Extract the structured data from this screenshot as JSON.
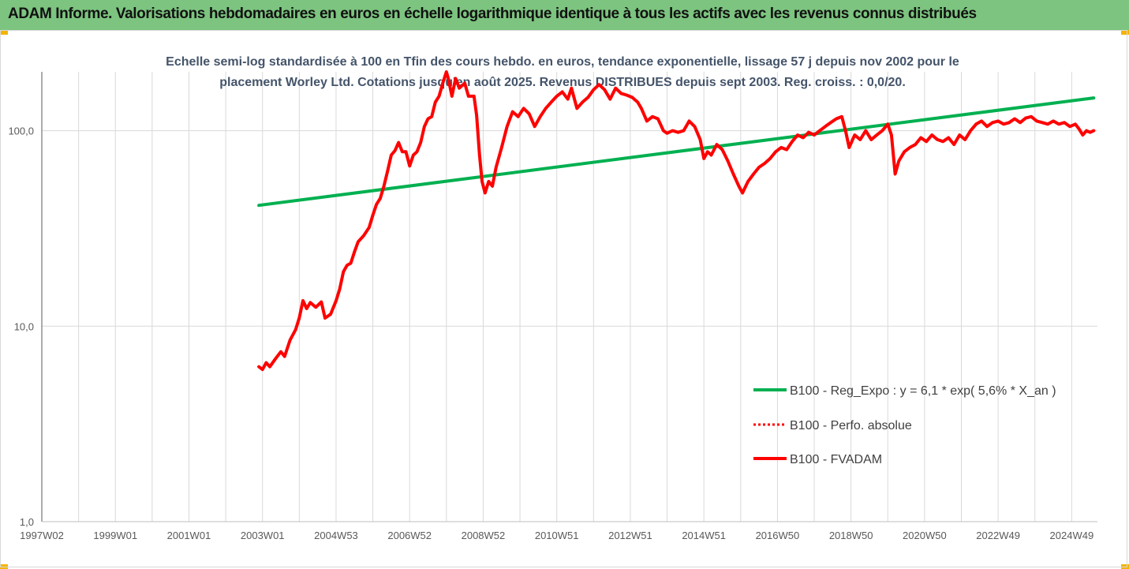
{
  "header": {
    "title": "ADAM Informe. Valorisations hebdomadaires en euros en échelle logarithmique identique à tous les actifs avec les revenus connus distribués"
  },
  "colors": {
    "header_bg": "#7cc47f",
    "regression": "#00b050",
    "performance": "#ff0000",
    "gridline": "#d9d9d9",
    "title_text": "#44546a"
  },
  "chart_data": {
    "type": "line",
    "title_lines": [
      "Echelle semi-log standardisée à 100 en Tfin des cours hebdo. en euros, tendance exponentielle, lissage 57 j depuis nov 2002 pour le",
      "placement Worley Ltd. Cotations jusqu'en août 2025. Revenus DISTRIBUES depuis sept 2003. Reg. croiss. : 0,0/20."
    ],
    "y_scale": "log",
    "ylim": [
      1,
      200
    ],
    "y_ticks": [
      {
        "value": 1,
        "label": "1,0"
      },
      {
        "value": 10,
        "label": "10,0"
      },
      {
        "value": 100,
        "label": "100,0"
      }
    ],
    "xlim": [
      1997.0,
      2025.7
    ],
    "x_ticks": [
      {
        "year": 1997.0,
        "label": "1997W02"
      },
      {
        "year": 1999.0,
        "label": "1999W01"
      },
      {
        "year": 2001.0,
        "label": "2001W01"
      },
      {
        "year": 2003.0,
        "label": "2003W01"
      },
      {
        "year": 2005.0,
        "label": "2004W53"
      },
      {
        "year": 2007.0,
        "label": "2006W52"
      },
      {
        "year": 2009.0,
        "label": "2008W52"
      },
      {
        "year": 2011.0,
        "label": "2010W51"
      },
      {
        "year": 2013.0,
        "label": "2012W51"
      },
      {
        "year": 2015.0,
        "label": "2014W51"
      },
      {
        "year": 2017.0,
        "label": "2016W50"
      },
      {
        "year": 2019.0,
        "label": "2018W50"
      },
      {
        "year": 2021.0,
        "label": "2020W50"
      },
      {
        "year": 2023.0,
        "label": "2022W49"
      },
      {
        "year": 2025.0,
        "label": "2024W49"
      }
    ],
    "grid": {
      "vertical": true,
      "horizontal": true
    },
    "legend_position": "right",
    "series": [
      {
        "name": "B100 - Reg_Expo : y = 6,1 * exp( 5,6% *  X_an )",
        "style": "solid",
        "color": "#00b050",
        "points": [
          [
            2002.9,
            41.5
          ],
          [
            2025.6,
            147
          ]
        ]
      },
      {
        "name": "B100 - Perfo. absolue",
        "style": "dotted",
        "color": "#ff0000",
        "points": []
      },
      {
        "name": "B100 - FVADAM",
        "style": "solid",
        "color": "#ff0000",
        "points": [
          [
            2002.9,
            6.2
          ],
          [
            2003.0,
            6.0
          ],
          [
            2003.1,
            6.5
          ],
          [
            2003.2,
            6.2
          ],
          [
            2003.35,
            6.8
          ],
          [
            2003.5,
            7.4
          ],
          [
            2003.6,
            7.0
          ],
          [
            2003.75,
            8.5
          ],
          [
            2003.9,
            9.6
          ],
          [
            2004.0,
            11.0
          ],
          [
            2004.1,
            13.5
          ],
          [
            2004.2,
            12.3
          ],
          [
            2004.3,
            13.2
          ],
          [
            2004.45,
            12.5
          ],
          [
            2004.6,
            13.3
          ],
          [
            2004.7,
            11.0
          ],
          [
            2004.85,
            11.5
          ],
          [
            2005.0,
            13.5
          ],
          [
            2005.1,
            15.5
          ],
          [
            2005.2,
            19.0
          ],
          [
            2005.3,
            20.5
          ],
          [
            2005.4,
            21.0
          ],
          [
            2005.5,
            24.0
          ],
          [
            2005.6,
            27.0
          ],
          [
            2005.75,
            29.0
          ],
          [
            2005.9,
            32.0
          ],
          [
            2006.0,
            37.0
          ],
          [
            2006.1,
            42.0
          ],
          [
            2006.2,
            45.0
          ],
          [
            2006.3,
            52.0
          ],
          [
            2006.4,
            62.0
          ],
          [
            2006.5,
            75.0
          ],
          [
            2006.6,
            79.0
          ],
          [
            2006.7,
            87.0
          ],
          [
            2006.8,
            78.0
          ],
          [
            2006.9,
            78.0
          ],
          [
            2007.0,
            66.0
          ],
          [
            2007.1,
            75.0
          ],
          [
            2007.2,
            78.0
          ],
          [
            2007.3,
            87.0
          ],
          [
            2007.4,
            105.0
          ],
          [
            2007.5,
            115.0
          ],
          [
            2007.6,
            118.0
          ],
          [
            2007.7,
            140.0
          ],
          [
            2007.8,
            150.0
          ],
          [
            2007.9,
            175.0
          ],
          [
            2008.0,
            200.0
          ],
          [
            2008.05,
            185.0
          ],
          [
            2008.15,
            150.0
          ],
          [
            2008.25,
            185.0
          ],
          [
            2008.35,
            165.0
          ],
          [
            2008.5,
            175.0
          ],
          [
            2008.6,
            150.0
          ],
          [
            2008.75,
            150.0
          ],
          [
            2008.82,
            120.0
          ],
          [
            2008.9,
            75.0
          ],
          [
            2008.97,
            55.0
          ],
          [
            2009.05,
            48.0
          ],
          [
            2009.15,
            55.0
          ],
          [
            2009.25,
            52.0
          ],
          [
            2009.35,
            65.0
          ],
          [
            2009.5,
            82.0
          ],
          [
            2009.65,
            105.0
          ],
          [
            2009.8,
            125.0
          ],
          [
            2009.95,
            118.0
          ],
          [
            2010.1,
            130.0
          ],
          [
            2010.25,
            122.0
          ],
          [
            2010.4,
            105.0
          ],
          [
            2010.55,
            118.0
          ],
          [
            2010.7,
            130.0
          ],
          [
            2010.85,
            140.0
          ],
          [
            2011.0,
            150.0
          ],
          [
            2011.15,
            158.0
          ],
          [
            2011.3,
            145.0
          ],
          [
            2011.4,
            165.0
          ],
          [
            2011.55,
            130.0
          ],
          [
            2011.7,
            140.0
          ],
          [
            2011.85,
            148.0
          ],
          [
            2012.0,
            162.0
          ],
          [
            2012.15,
            172.0
          ],
          [
            2012.3,
            162.0
          ],
          [
            2012.45,
            145.0
          ],
          [
            2012.6,
            165.0
          ],
          [
            2012.75,
            155.0
          ],
          [
            2012.9,
            152.0
          ],
          [
            2013.05,
            148.0
          ],
          [
            2013.2,
            140.0
          ],
          [
            2013.3,
            130.0
          ],
          [
            2013.45,
            112.0
          ],
          [
            2013.6,
            118.0
          ],
          [
            2013.75,
            115.0
          ],
          [
            2013.9,
            100.0
          ],
          [
            2014.0,
            97.0
          ],
          [
            2014.15,
            100.0
          ],
          [
            2014.3,
            98.0
          ],
          [
            2014.45,
            100.0
          ],
          [
            2014.6,
            112.0
          ],
          [
            2014.75,
            105.0
          ],
          [
            2014.9,
            90.0
          ],
          [
            2015.0,
            72.0
          ],
          [
            2015.1,
            78.0
          ],
          [
            2015.2,
            75.0
          ],
          [
            2015.35,
            85.0
          ],
          [
            2015.5,
            80.0
          ],
          [
            2015.65,
            70.0
          ],
          [
            2015.8,
            60.0
          ],
          [
            2015.95,
            52.0
          ],
          [
            2016.05,
            48.0
          ],
          [
            2016.2,
            55.0
          ],
          [
            2016.35,
            60.0
          ],
          [
            2016.5,
            65.0
          ],
          [
            2016.65,
            68.0
          ],
          [
            2016.8,
            72.0
          ],
          [
            2016.95,
            78.0
          ],
          [
            2017.1,
            82.0
          ],
          [
            2017.25,
            80.0
          ],
          [
            2017.4,
            88.0
          ],
          [
            2017.55,
            95.0
          ],
          [
            2017.7,
            92.0
          ],
          [
            2017.85,
            98.0
          ],
          [
            2018.0,
            95.0
          ],
          [
            2018.15,
            100.0
          ],
          [
            2018.3,
            105.0
          ],
          [
            2018.45,
            110.0
          ],
          [
            2018.6,
            115.0
          ],
          [
            2018.75,
            118.0
          ],
          [
            2018.85,
            100.0
          ],
          [
            2018.95,
            82.0
          ],
          [
            2019.1,
            95.0
          ],
          [
            2019.25,
            90.0
          ],
          [
            2019.4,
            100.0
          ],
          [
            2019.55,
            90.0
          ],
          [
            2019.7,
            95.0
          ],
          [
            2019.85,
            100.0
          ],
          [
            2020.0,
            108.0
          ],
          [
            2020.1,
            95.0
          ],
          [
            2020.2,
            60.0
          ],
          [
            2020.3,
            70.0
          ],
          [
            2020.45,
            78.0
          ],
          [
            2020.6,
            82.0
          ],
          [
            2020.75,
            85.0
          ],
          [
            2020.9,
            92.0
          ],
          [
            2021.05,
            88.0
          ],
          [
            2021.2,
            95.0
          ],
          [
            2021.35,
            90.0
          ],
          [
            2021.5,
            88.0
          ],
          [
            2021.65,
            92.0
          ],
          [
            2021.8,
            85.0
          ],
          [
            2021.95,
            95.0
          ],
          [
            2022.1,
            90.0
          ],
          [
            2022.25,
            100.0
          ],
          [
            2022.4,
            108.0
          ],
          [
            2022.55,
            112.0
          ],
          [
            2022.7,
            105.0
          ],
          [
            2022.85,
            110.0
          ],
          [
            2023.0,
            112.0
          ],
          [
            2023.15,
            108.0
          ],
          [
            2023.3,
            110.0
          ],
          [
            2023.45,
            115.0
          ],
          [
            2023.6,
            110.0
          ],
          [
            2023.75,
            116.0
          ],
          [
            2023.9,
            118.0
          ],
          [
            2024.05,
            112.0
          ],
          [
            2024.2,
            110.0
          ],
          [
            2024.35,
            108.0
          ],
          [
            2024.5,
            112.0
          ],
          [
            2024.65,
            108.0
          ],
          [
            2024.8,
            110.0
          ],
          [
            2024.95,
            105.0
          ],
          [
            2025.1,
            108.0
          ],
          [
            2025.2,
            102.0
          ],
          [
            2025.3,
            95.0
          ],
          [
            2025.4,
            100.0
          ],
          [
            2025.5,
            98.0
          ],
          [
            2025.6,
            100.0
          ]
        ]
      }
    ]
  }
}
